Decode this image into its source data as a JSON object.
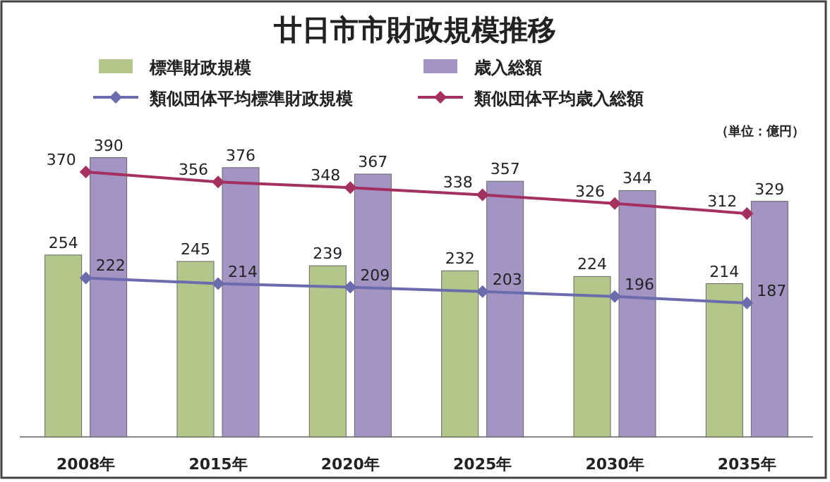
{
  "chart_data": {
    "type": "bar",
    "title": "廿日市市財政規模推移",
    "annotations": [
      "（単位：億円）"
    ],
    "categories": [
      "2008年",
      "2015年",
      "2020年",
      "2025年",
      "2030年",
      "2035年"
    ],
    "series": [
      {
        "name": "標準財政規模",
        "color": "#b3c78a",
        "values": [
          254,
          245,
          239,
          232,
          224,
          214
        ]
      },
      {
        "name": "歳入総額",
        "color": "#a494c4",
        "values": [
          390,
          376,
          367,
          357,
          344,
          329
        ]
      },
      {
        "name": "類似団体平均標準財政規模",
        "type": "line",
        "color": "#6b6cae",
        "values": [
          222,
          214,
          209,
          203,
          196,
          187
        ]
      },
      {
        "name": "類似団体平均歳入総額",
        "type": "line",
        "color": "#a3305f",
        "values": [
          370,
          356,
          348,
          338,
          326,
          312
        ]
      }
    ],
    "data_labels": true,
    "legend": "top",
    "marker": "diamond",
    "line_style": "solid"
  }
}
